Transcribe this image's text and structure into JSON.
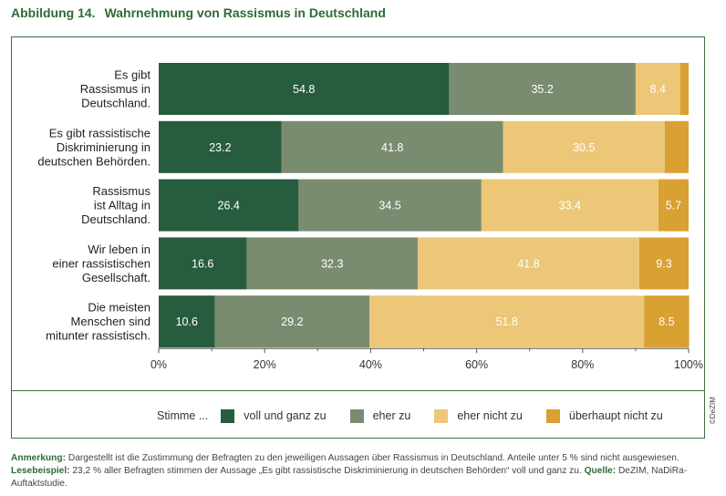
{
  "figure": {
    "number": "Abbildung 14.",
    "title": "Wahrnehmung von Rassismus in Deutschland"
  },
  "chart_data": {
    "type": "bar",
    "orientation": "horizontal",
    "stacked": true,
    "categories": [
      [
        "Es gibt",
        "Rassismus in",
        "Deutschland."
      ],
      [
        "Es gibt rassistische",
        "Diskriminierung in",
        "deutschen Behörden."
      ],
      [
        "Rassismus",
        "ist Alltag in",
        "Deutschland."
      ],
      [
        "Wir leben in",
        "einer rassistischen",
        "Gesellschaft."
      ],
      [
        "Die meisten",
        "Menschen sind",
        "mitunter rassistisch."
      ]
    ],
    "series": [
      {
        "name": "voll und ganz zu",
        "color": "#275c3f",
        "values": [
          54.8,
          23.2,
          26.4,
          16.6,
          10.6
        ],
        "labels": [
          "54.8",
          "23.2",
          "26.4",
          "16.6",
          "10.6"
        ]
      },
      {
        "name": "eher zu",
        "color": "#7a8c70",
        "values": [
          35.2,
          41.8,
          34.5,
          32.3,
          29.2
        ],
        "labels": [
          "35.2",
          "41.8",
          "34.5",
          "32.3",
          "29.2"
        ]
      },
      {
        "name": "eher nicht zu",
        "color": "#ecc777",
        "values": [
          8.4,
          30.5,
          33.4,
          41.8,
          51.8
        ],
        "labels": [
          "8.4",
          "30.5",
          "33.4",
          "41.8",
          "51.8"
        ]
      },
      {
        "name": "überhaupt nicht zu",
        "color": "#d9a032",
        "values": [
          1.6,
          4.5,
          5.7,
          9.3,
          8.5
        ],
        "labels": [
          "",
          "",
          "5.7",
          "9.3",
          "8.5"
        ]
      }
    ],
    "xlim": [
      0,
      100
    ],
    "xticks": [
      "0%",
      "20%",
      "40%",
      "60%",
      "80%",
      "100%"
    ],
    "grid": false,
    "legend_prefix": "Stimme ...",
    "legend_position": "bottom"
  },
  "note": {
    "label1": "Anmerkung:",
    "text1": " Dargestellt ist die Zustimmung der Befragten zu den jeweiligen Aussagen über Rassismus in Deutschland. Anteile unter 5 % sind nicht ausgewiesen. ",
    "label2": "Lesebeispiel:",
    "text2": " 23,2 % aller Befragten stimmen der Aussage „Es gibt rassistische Diskriminierung in deutschen Behörden“ voll und ganz zu. ",
    "label3": "Quelle:",
    "text3": " DeZIM, NaDiRa-Auftaktstudie."
  },
  "credit": "©DeZIM"
}
